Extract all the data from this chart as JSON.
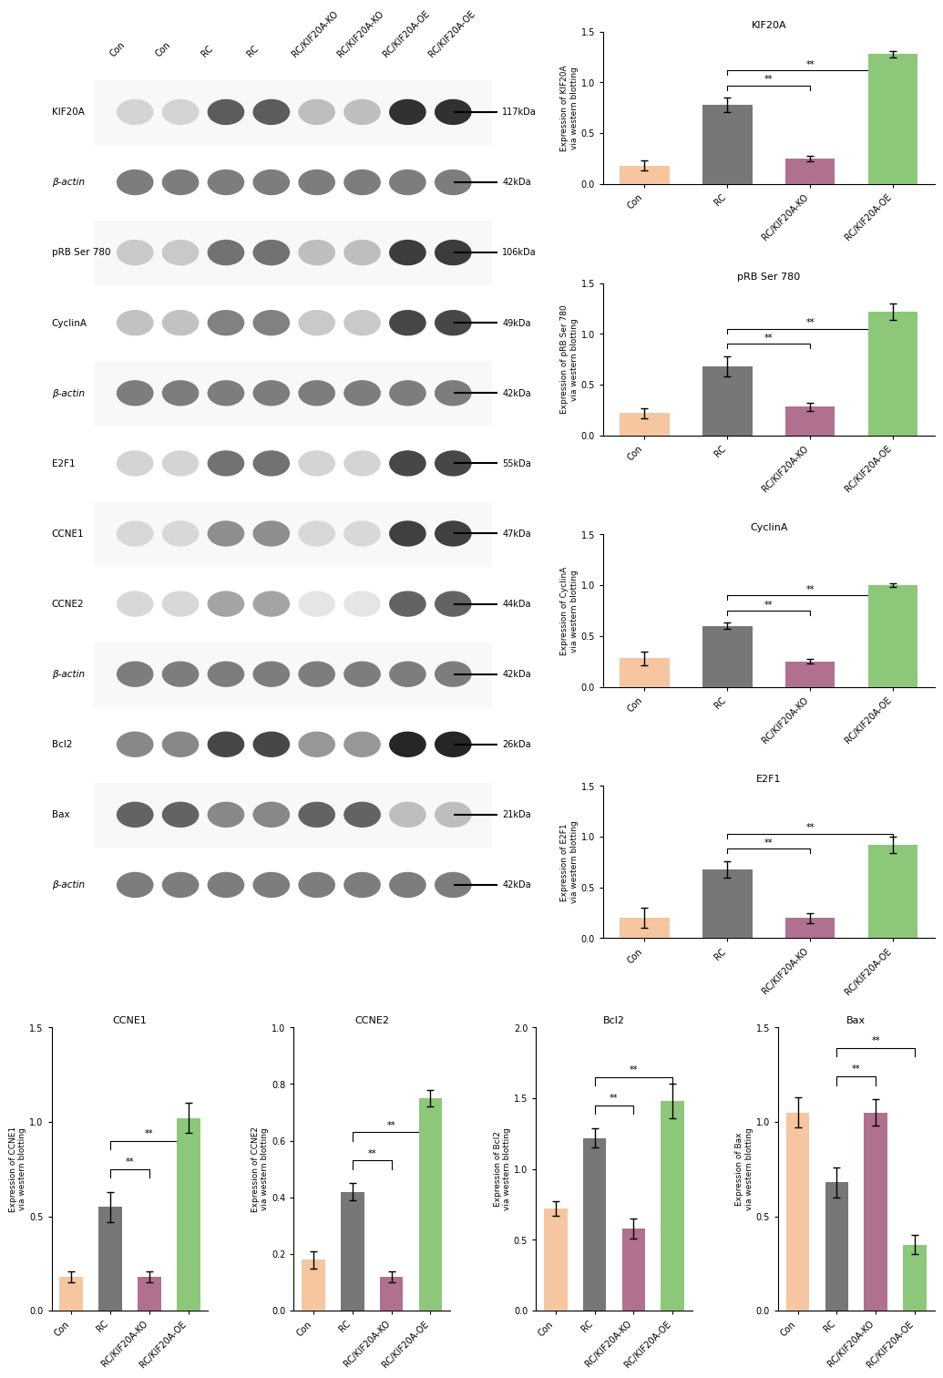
{
  "categories": [
    "Con",
    "RC",
    "RC/KIF20A-KO",
    "RC/KIF20A-OE"
  ],
  "bar_colors": [
    "#F5CBA7",
    "#808080",
    "#C39BD3",
    "#A9D18E"
  ],
  "bar_colors_exact": [
    "#f5c6a0",
    "#777777",
    "#b07090",
    "#8dc87a"
  ],
  "KIF20A": {
    "title": "KIF20A",
    "ylabel": "Expression of KIF20A\nvia western blotting",
    "values": [
      0.18,
      0.78,
      0.25,
      1.28
    ],
    "errors": [
      0.05,
      0.07,
      0.03,
      0.03
    ],
    "ylim": [
      0,
      1.5
    ],
    "yticks": [
      0.0,
      0.5,
      1.0,
      1.5
    ]
  },
  "pRB": {
    "title": "pRB Ser 780",
    "ylabel": "Expression of pRB Ser 780\nvia western blotting",
    "values": [
      0.22,
      0.68,
      0.28,
      1.22
    ],
    "errors": [
      0.05,
      0.1,
      0.04,
      0.08
    ],
    "ylim": [
      0,
      1.5
    ],
    "yticks": [
      0.0,
      0.5,
      1.0,
      1.5
    ]
  },
  "CyclinA": {
    "title": "CyclinA",
    "ylabel": "Expression of CyclinA\nvia western blotting",
    "values": [
      0.28,
      0.6,
      0.25,
      1.0
    ],
    "errors": [
      0.07,
      0.03,
      0.02,
      0.02
    ],
    "ylim": [
      0,
      1.5
    ],
    "yticks": [
      0.0,
      0.5,
      1.0,
      1.5
    ]
  },
  "E2F1": {
    "title": "E2F1",
    "ylabel": "Expression of E2F1\nvia western blotting",
    "values": [
      0.2,
      0.68,
      0.2,
      0.92
    ],
    "errors": [
      0.1,
      0.08,
      0.05,
      0.08
    ],
    "ylim": [
      0,
      1.5
    ],
    "yticks": [
      0.0,
      0.5,
      1.0,
      1.5
    ]
  },
  "CCNE1": {
    "title": "CCNE1",
    "ylabel": "Expression of CCNE1\nvia western blotting",
    "values": [
      0.18,
      0.55,
      0.18,
      1.02
    ],
    "errors": [
      0.03,
      0.08,
      0.03,
      0.08
    ],
    "ylim": [
      0,
      1.5
    ],
    "yticks": [
      0.0,
      0.5,
      1.0,
      1.5
    ]
  },
  "CCNE2": {
    "title": "CCNE2",
    "ylabel": "Expression of CCNE2\nvia western blotting",
    "values": [
      0.18,
      0.42,
      0.12,
      0.75
    ],
    "errors": [
      0.03,
      0.03,
      0.02,
      0.03
    ],
    "ylim": [
      0,
      1.0
    ],
    "yticks": [
      0.0,
      0.2,
      0.4,
      0.6,
      0.8,
      1.0
    ]
  },
  "Bcl2": {
    "title": "Bcl2",
    "ylabel": "Expression of Bcl2\nvia western blotting",
    "values": [
      0.72,
      1.22,
      0.58,
      1.48
    ],
    "errors": [
      0.05,
      0.07,
      0.07,
      0.12
    ],
    "ylim": [
      0,
      2.0
    ],
    "yticks": [
      0.0,
      0.5,
      1.0,
      1.5,
      2.0
    ]
  },
  "Bax": {
    "title": "Bax",
    "ylabel": "Expression of Bax\nvia western blotting",
    "values": [
      1.05,
      0.68,
      1.05,
      0.35
    ],
    "errors": [
      0.08,
      0.08,
      0.07,
      0.05
    ],
    "ylim": [
      0,
      1.5
    ],
    "yticks": [
      0.0,
      0.5,
      1.0,
      1.5
    ]
  },
  "blot_labels": [
    "KIF20A",
    "β-actin",
    "pRB Ser 780",
    "CyclinA",
    "β-actin",
    "E2F1",
    "CCNE1",
    "CCNE2",
    "β-actin",
    "Bcl2",
    "Bax",
    "β-actin"
  ],
  "blot_kda": [
    "117kDa",
    "42kDa",
    "106kDa",
    "49kDa",
    "42kDa",
    "55kDa",
    "47kDa",
    "44kDa",
    "42kDa",
    "26kDa",
    "21kDa",
    "42kDa"
  ],
  "col_labels": [
    "Con",
    "Con",
    "RC",
    "RC",
    "RC/KIF20A-KO",
    "RC/KIF20A-KO",
    "RC/KIF20A-OE",
    "RC/KIF20A-OE"
  ],
  "sig_brackets": {
    "inner": [
      1,
      2
    ],
    "outer": [
      1,
      3
    ]
  }
}
